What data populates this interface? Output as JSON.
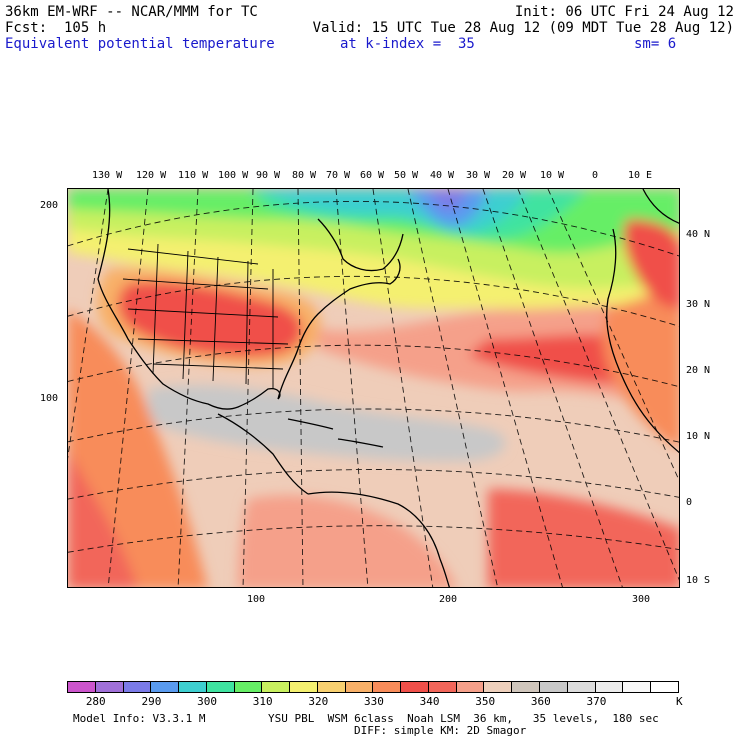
{
  "header": {
    "model_title": "36km EM-WRF -- NCAR/MMM for TC",
    "init": "Init: 06 UTC Fri 24 Aug 12",
    "forecast": "Fcst:  105 h",
    "valid": "Valid: 15 UTC Tue 28 Aug 12 (09 MDT Tue 28 Aug 12)",
    "field": "Equivalent potential temperature",
    "level": "at k-index =  35",
    "smoothing": "sm= 6"
  },
  "longitude_labels": [
    "130 W",
    "120 W",
    "110 W",
    "100 W",
    "90 W",
    "80 W",
    "70 W",
    "60 W",
    "50 W",
    "40 W",
    "30 W",
    "20 W",
    "10 W",
    "0",
    "10 E"
  ],
  "latitude_labels": [
    "40 N",
    "30 N",
    "20 N",
    "10 N",
    "0",
    "10 S"
  ],
  "grid_y_labels": [
    "200",
    "100"
  ],
  "grid_x_labels": [
    "100",
    "200",
    "300"
  ],
  "colorbar": {
    "colors": [
      "#cc55cc",
      "#a070d8",
      "#7b7be8",
      "#5a9bef",
      "#3ecfd0",
      "#3fe3a0",
      "#66ee66",
      "#c8f060",
      "#f4f070",
      "#f8d070",
      "#f8b068",
      "#f88c5a",
      "#f0504a",
      "#f2665a",
      "#f5a08a",
      "#eed0bc",
      "#d0c6bc",
      "#c8c8c8",
      "#dcdcdc",
      "#ececec",
      "#f8f8f8",
      "#ffffff"
    ],
    "labels": [
      "280",
      "290",
      "300",
      "310",
      "320",
      "330",
      "340",
      "350",
      "360",
      "370"
    ],
    "unit": "K"
  },
  "footer": {
    "model_info": "Model Info: V3.3.1 M",
    "physics": "YSU PBL  WSM 6class  Noah LSM  36 km,   35 levels,  180 sec",
    "diffusion": "DIFF: simple KM: 2D Smagor"
  }
}
